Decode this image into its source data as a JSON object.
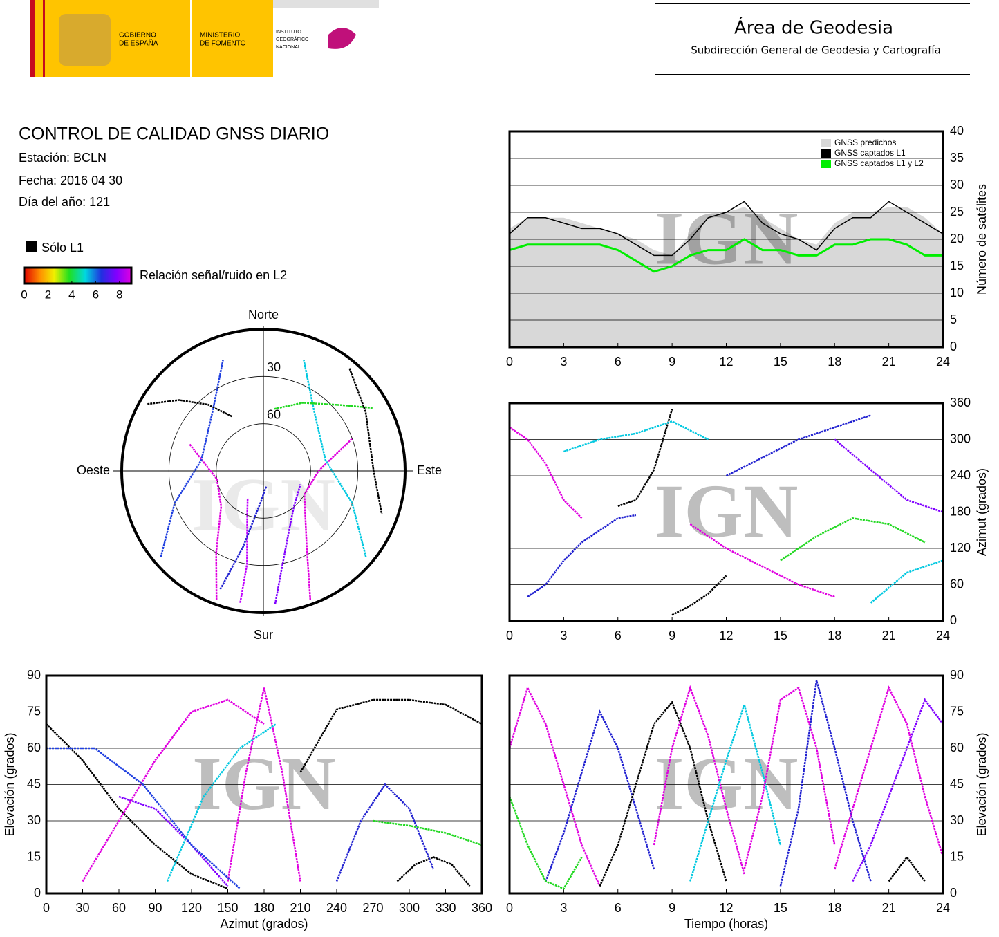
{
  "header": {
    "gobierno": [
      "GOBIERNO",
      "DE ESPAÑA"
    ],
    "ministerio": [
      "MINISTERIO",
      "DE FOMENTO"
    ],
    "instituto": [
      "INSTITUTO",
      "GEOGRÁFICO",
      "NACIONAL"
    ],
    "area": "Área de Geodesia",
    "subdireccion": "Subdirección General de Geodesia y Cartografía"
  },
  "info": {
    "title": "CONTROL DE CALIDAD GNSS DIARIO",
    "station": "Estación: BCLN",
    "date": "Fecha: 2016 04 30",
    "doy": "Día del año: 121",
    "l1_only": "Sólo L1",
    "colorbar_label": "Relación señal/ruido en L2",
    "colorbar_lim": [
      0,
      9
    ],
    "colorbar_ticks": [
      0,
      2,
      4,
      6,
      8
    ]
  },
  "chart_data": [
    {
      "type": "polar",
      "watermark": "IGN",
      "directions": {
        "north": "Norte",
        "east": "Este",
        "south": "Sur",
        "west": "Oeste"
      },
      "rticks": [
        30,
        60
      ],
      "series": [
        {
          "color": "#000000",
          "azimuth": [
            300,
            310,
            320,
            330
          ],
          "elevation": [
            5,
            20,
            35,
            50
          ]
        },
        {
          "color": "#e000e0",
          "azimuth": [
            200,
            210,
            230,
            260,
            290
          ],
          "elevation": [
            3,
            30,
            55,
            60,
            40
          ]
        },
        {
          "color": "#e000e0",
          "azimuth": [
            160,
            150,
            120,
            90,
            70
          ],
          "elevation": [
            3,
            35,
            60,
            55,
            30
          ]
        },
        {
          "color": "#c000ff",
          "azimuth": [
            190,
            190,
            200,
            210
          ],
          "elevation": [
            5,
            30,
            60,
            70
          ]
        },
        {
          "color": "#2040e0",
          "azimuth": [
            230,
            250,
            280,
            320,
            340
          ],
          "elevation": [
            5,
            30,
            50,
            40,
            15
          ]
        },
        {
          "color": "#00c8e0",
          "azimuth": [
            130,
            110,
            80,
            40,
            20
          ],
          "elevation": [
            5,
            30,
            50,
            40,
            15
          ]
        },
        {
          "color": "#8000ff",
          "azimuth": [
            175,
            170,
            160,
            140,
            110
          ],
          "elevation": [
            5,
            25,
            45,
            60,
            65
          ]
        },
        {
          "color": "#20d820",
          "azimuth": [
            60,
            50,
            30,
            10
          ],
          "elevation": [
            10,
            25,
            40,
            50
          ]
        },
        {
          "color": "#2020d0",
          "azimuth": [
            200,
            195,
            185,
            170
          ],
          "elevation": [
            10,
            40,
            70,
            80
          ]
        },
        {
          "color": "#000000",
          "azimuth": [
            40,
            60,
            90,
            110
          ],
          "elevation": [
            5,
            15,
            20,
            10
          ]
        }
      ]
    },
    {
      "type": "line",
      "watermark": "IGN",
      "ylabel": "Número de satélites",
      "xlim": [
        0,
        24
      ],
      "xticks": [
        0,
        3,
        6,
        9,
        12,
        15,
        18,
        21,
        24
      ],
      "ylim": [
        0,
        40
      ],
      "yticks": [
        0,
        5,
        10,
        15,
        20,
        25,
        30,
        35,
        40
      ],
      "grid": true,
      "x": [
        0,
        1,
        2,
        3,
        4,
        5,
        6,
        7,
        8,
        9,
        10,
        11,
        12,
        13,
        14,
        15,
        16,
        17,
        18,
        19,
        20,
        21,
        22,
        23,
        24
      ],
      "series": [
        {
          "name": "GNSS predichos",
          "color": "#d8d8d8",
          "area": true,
          "values": [
            22,
            24,
            24,
            24,
            23,
            22,
            21,
            20,
            18,
            17,
            21,
            24,
            25,
            26,
            24,
            22,
            20,
            19,
            23,
            25,
            25,
            26,
            26,
            24,
            21
          ]
        },
        {
          "name": "GNSS captados L1",
          "color": "#000000",
          "values": [
            21,
            24,
            24,
            23,
            22,
            22,
            21,
            19,
            17,
            17,
            20,
            24,
            25,
            27,
            23,
            21,
            20,
            18,
            22,
            24,
            24,
            27,
            25,
            23,
            21
          ]
        },
        {
          "name": "GNSS captados L1 y L2",
          "color": "#00ee00",
          "values": [
            18,
            19,
            19,
            19,
            19,
            19,
            18,
            16,
            14,
            15,
            17,
            18,
            18,
            20,
            18,
            18,
            17,
            17,
            19,
            19,
            20,
            20,
            19,
            17,
            17
          ]
        }
      ]
    },
    {
      "type": "line",
      "watermark": "IGN",
      "ylabel": "Azimut (grados)",
      "xlim": [
        0,
        24
      ],
      "xticks": [
        0,
        3,
        6,
        9,
        12,
        15,
        18,
        21,
        24
      ],
      "ylim": [
        0,
        360
      ],
      "yticks": [
        0,
        60,
        120,
        180,
        240,
        300,
        360
      ],
      "grid": true,
      "series": [
        {
          "color": "#e000e0",
          "x": [
            0,
            1,
            2,
            3,
            4
          ],
          "values": [
            320,
            300,
            260,
            200,
            170
          ]
        },
        {
          "color": "#2020d0",
          "x": [
            1,
            2,
            3,
            4,
            5,
            6,
            7
          ],
          "values": [
            40,
            60,
            100,
            130,
            150,
            170,
            175
          ]
        },
        {
          "color": "#000000",
          "x": [
            6,
            7,
            8,
            9
          ],
          "values": [
            190,
            200,
            250,
            350
          ]
        },
        {
          "color": "#000000",
          "x": [
            9,
            10,
            11,
            12
          ],
          "values": [
            10,
            25,
            45,
            75
          ]
        },
        {
          "color": "#00c8e0",
          "x": [
            3,
            5,
            7,
            9,
            11
          ],
          "values": [
            280,
            300,
            310,
            330,
            300
          ]
        },
        {
          "color": "#e000e0",
          "x": [
            10,
            12,
            14,
            16,
            18
          ],
          "values": [
            160,
            120,
            90,
            60,
            40
          ]
        },
        {
          "color": "#2020d0",
          "x": [
            12,
            14,
            16,
            18,
            20
          ],
          "values": [
            240,
            270,
            300,
            320,
            340
          ]
        },
        {
          "color": "#20d820",
          "x": [
            15,
            17,
            19,
            21,
            23
          ],
          "values": [
            100,
            140,
            170,
            160,
            130
          ]
        },
        {
          "color": "#8000ff",
          "x": [
            18,
            20,
            22,
            24
          ],
          "values": [
            300,
            250,
            200,
            180
          ]
        },
        {
          "color": "#00c8e0",
          "x": [
            20,
            22,
            24
          ],
          "values": [
            30,
            80,
            100
          ]
        }
      ]
    },
    {
      "type": "line",
      "watermark": "IGN",
      "xlabel": "Azimut (grados)",
      "ylabel": "Elevación (grados)",
      "xlim": [
        0,
        360
      ],
      "xticks": [
        0,
        30,
        60,
        90,
        120,
        150,
        180,
        210,
        240,
        270,
        300,
        330,
        360
      ],
      "ylim": [
        0,
        90
      ],
      "yticks": [
        0,
        15,
        30,
        45,
        60,
        75,
        90
      ],
      "grid": true,
      "series": [
        {
          "color": "#000000",
          "x": [
            0,
            30,
            60,
            90,
            120,
            150
          ],
          "values": [
            70,
            55,
            35,
            20,
            8,
            2
          ]
        },
        {
          "color": "#e000e0",
          "x": [
            30,
            60,
            90,
            120,
            150,
            180
          ],
          "values": [
            5,
            30,
            55,
            75,
            80,
            70
          ]
        },
        {
          "color": "#e000e0",
          "x": [
            150,
            165,
            180,
            195,
            210
          ],
          "values": [
            5,
            50,
            85,
            50,
            5
          ]
        },
        {
          "color": "#000000",
          "x": [
            210,
            240,
            270,
            300,
            330,
            360
          ],
          "values": [
            50,
            76,
            80,
            80,
            78,
            70
          ]
        },
        {
          "color": "#000000",
          "x": [
            290,
            305,
            320,
            335,
            350
          ],
          "values": [
            5,
            12,
            15,
            12,
            3
          ]
        },
        {
          "color": "#8000ff",
          "x": [
            60,
            90,
            120,
            150
          ],
          "values": [
            40,
            35,
            20,
            3
          ]
        },
        {
          "color": "#2020d0",
          "x": [
            240,
            260,
            280,
            300,
            320
          ],
          "values": [
            5,
            30,
            45,
            35,
            10
          ]
        },
        {
          "color": "#2040e0",
          "x": [
            0,
            40,
            80,
            120,
            160
          ],
          "values": [
            60,
            60,
            45,
            20,
            2
          ]
        },
        {
          "color": "#00c8e0",
          "x": [
            100,
            130,
            160,
            190
          ],
          "values": [
            5,
            40,
            60,
            70
          ]
        },
        {
          "color": "#20d820",
          "x": [
            270,
            300,
            330,
            360
          ],
          "values": [
            30,
            28,
            25,
            20
          ]
        }
      ]
    },
    {
      "type": "line",
      "watermark": "IGN",
      "xlabel": "Tiempo (horas)",
      "ylabel": "Elevación (grados)",
      "xlim": [
        0,
        24
      ],
      "xticks": [
        0,
        3,
        6,
        9,
        12,
        15,
        18,
        21,
        24
      ],
      "ylim": [
        0,
        90
      ],
      "yticks": [
        0,
        15,
        30,
        45,
        60,
        75,
        90
      ],
      "grid": true,
      "series": [
        {
          "color": "#e000e0",
          "x": [
            0,
            1,
            2,
            3,
            4,
            5
          ],
          "values": [
            60,
            85,
            70,
            45,
            20,
            3
          ]
        },
        {
          "color": "#2020d0",
          "x": [
            2,
            3,
            4,
            5,
            6,
            7,
            8
          ],
          "values": [
            5,
            25,
            50,
            75,
            60,
            35,
            10
          ]
        },
        {
          "color": "#000000",
          "x": [
            5,
            6,
            7,
            8,
            9,
            10,
            11,
            12
          ],
          "values": [
            3,
            20,
            45,
            70,
            79,
            60,
            30,
            5
          ]
        },
        {
          "color": "#e000e0",
          "x": [
            8,
            9,
            10,
            11,
            12,
            13
          ],
          "values": [
            20,
            60,
            85,
            65,
            35,
            8
          ]
        },
        {
          "color": "#00c8e0",
          "x": [
            10,
            11,
            12,
            13,
            14,
            15
          ],
          "values": [
            5,
            30,
            55,
            78,
            50,
            20
          ]
        },
        {
          "color": "#e000e0",
          "x": [
            13,
            14,
            15,
            16,
            17,
            18
          ],
          "values": [
            10,
            40,
            80,
            85,
            60,
            20
          ]
        },
        {
          "color": "#2020d0",
          "x": [
            15,
            16,
            17,
            18,
            19,
            20
          ],
          "values": [
            3,
            35,
            88,
            60,
            30,
            5
          ]
        },
        {
          "color": "#e000e0",
          "x": [
            18,
            19,
            20,
            21,
            22,
            23,
            24
          ],
          "values": [
            10,
            35,
            60,
            85,
            70,
            40,
            15
          ]
        },
        {
          "color": "#000000",
          "x": [
            21,
            22,
            23
          ],
          "values": [
            5,
            15,
            5
          ]
        },
        {
          "color": "#20d820",
          "x": [
            0,
            1,
            2,
            3,
            4
          ],
          "values": [
            40,
            20,
            5,
            2,
            15
          ]
        },
        {
          "color": "#8000ff",
          "x": [
            19,
            20,
            21,
            22,
            23,
            24
          ],
          "values": [
            5,
            20,
            40,
            60,
            80,
            70
          ]
        }
      ]
    }
  ]
}
